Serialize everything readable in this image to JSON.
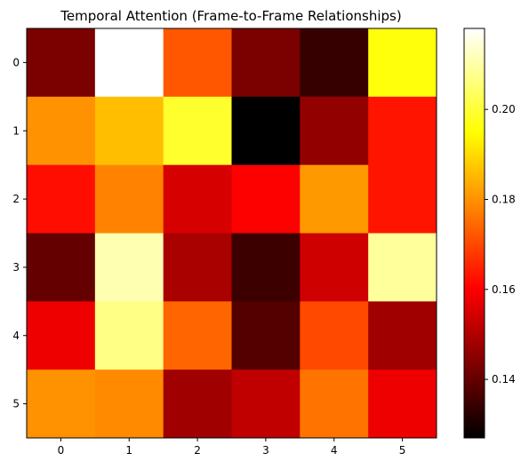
{
  "chart_data": {
    "type": "heatmap",
    "title": "Temporal Attention (Frame-to-Frame Relationships)",
    "xlabel": "",
    "ylabel": "",
    "x_ticks": [
      "0",
      "1",
      "2",
      "3",
      "4",
      "5"
    ],
    "y_ticks": [
      "0",
      "1",
      "2",
      "3",
      "4",
      "5"
    ],
    "colormap": "hot",
    "color_range": [
      0.127,
      0.218
    ],
    "colorbar_ticks": [
      {
        "value": 0.14,
        "label": "0.14"
      },
      {
        "value": 0.16,
        "label": "0.16"
      },
      {
        "value": 0.18,
        "label": "0.18"
      },
      {
        "value": 0.2,
        "label": "0.20"
      }
    ],
    "values": [
      [
        0.143,
        0.218,
        0.172,
        0.143,
        0.134,
        0.196
      ],
      [
        0.18,
        0.186,
        0.199,
        0.127,
        0.146,
        0.163
      ],
      [
        0.162,
        0.178,
        0.155,
        0.16,
        0.181,
        0.163
      ],
      [
        0.14,
        0.211,
        0.149,
        0.135,
        0.154,
        0.209
      ],
      [
        0.158,
        0.207,
        0.174,
        0.138,
        0.17,
        0.148
      ],
      [
        0.18,
        0.179,
        0.148,
        0.152,
        0.176,
        0.158
      ]
    ]
  }
}
